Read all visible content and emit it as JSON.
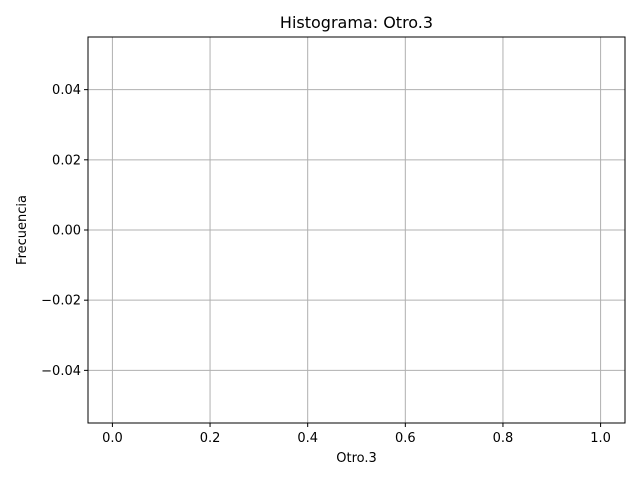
{
  "chart_data": {
    "type": "bar",
    "title": "Histograma: Otro.3",
    "xlabel": "Otro.3",
    "ylabel": "Frecuencia",
    "xlim": [
      -0.05,
      1.05
    ],
    "ylim": [
      -0.055,
      0.055
    ],
    "xticks": [
      0.0,
      0.2,
      0.4,
      0.6,
      0.8,
      1.0
    ],
    "xtick_labels": [
      "0.0",
      "0.2",
      "0.4",
      "0.6",
      "0.8",
      "1.0"
    ],
    "yticks": [
      -0.04,
      -0.02,
      0.0,
      0.02,
      0.04
    ],
    "ytick_labels": [
      "−0.04",
      "−0.02",
      "0.00",
      "0.02",
      "0.04"
    ],
    "grid": true,
    "bins": [],
    "values": []
  },
  "colors": {
    "grid": "#b0b0b0",
    "axes": "#000000",
    "background": "#ffffff",
    "bar": "#1f77b4"
  }
}
